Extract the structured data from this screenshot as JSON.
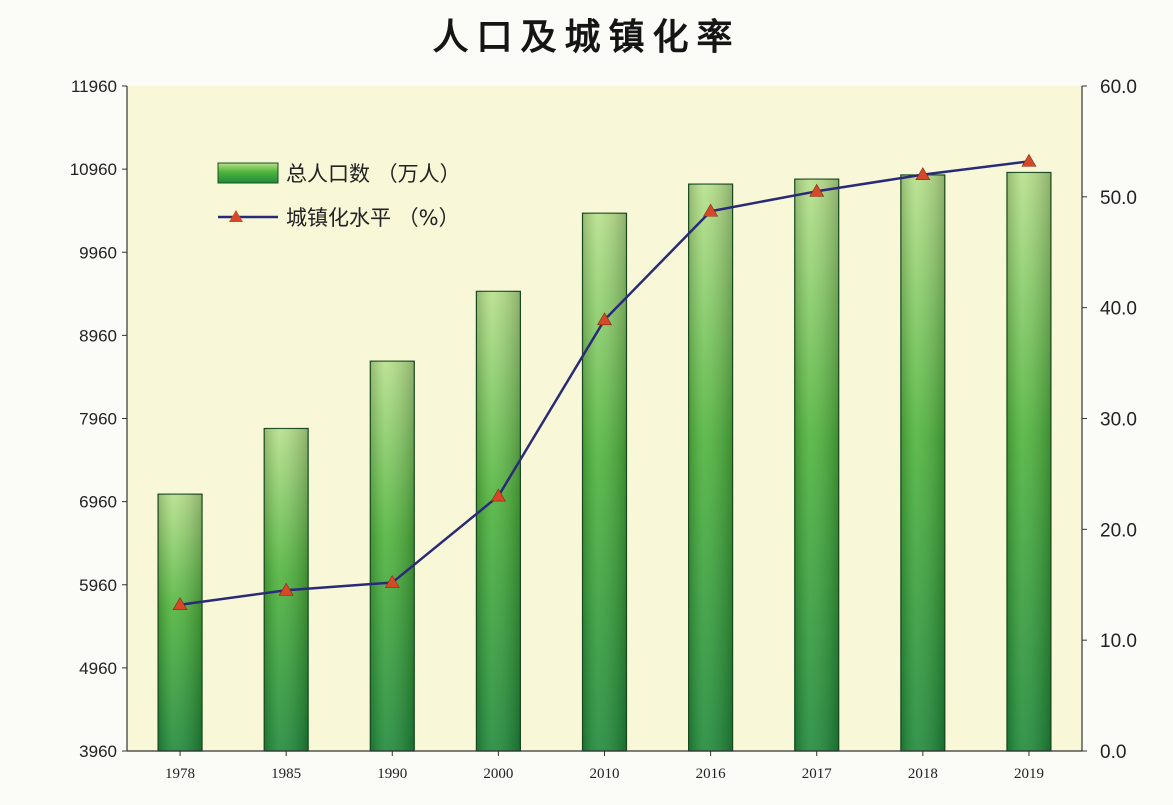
{
  "chart_data": {
    "type": "bar",
    "title": "人口及城镇化率",
    "categories": [
      "1978",
      "1985",
      "1990",
      "2000",
      "2010",
      "2016",
      "2017",
      "2018",
      "2019"
    ],
    "series": [
      {
        "name": "总人口数 （万人）",
        "type": "bar",
        "axis": "left",
        "values": [
          7050,
          7840,
          8650,
          9490,
          10430,
          10780,
          10840,
          10890,
          10920
        ]
      },
      {
        "name": "城镇化水平 （%）",
        "type": "line",
        "axis": "right",
        "values": [
          13.2,
          14.5,
          15.2,
          23.0,
          38.9,
          48.7,
          50.5,
          52.0,
          53.2
        ]
      }
    ],
    "y_left": {
      "range": [
        3960,
        11960
      ],
      "ticks": [
        "3960",
        "4960",
        "5960",
        "6960",
        "7960",
        "8960",
        "9960",
        "10960",
        "11960"
      ]
    },
    "y_right": {
      "range": [
        0,
        60
      ],
      "ticks": [
        "0.0",
        "10.0",
        "20.0",
        "30.0",
        "40.0",
        "50.0",
        "60.0"
      ]
    },
    "legend_position": "top-left",
    "grid": false,
    "colors": {
      "plot_bg": "#f8f8d8",
      "bar_light": "#b6e08a",
      "bar_mid": "#4fb43c",
      "bar_dark": "#1f8a3a",
      "bar_edge": "#1a4f22",
      "line": "#2a2a78",
      "marker": "#d44a28"
    }
  }
}
